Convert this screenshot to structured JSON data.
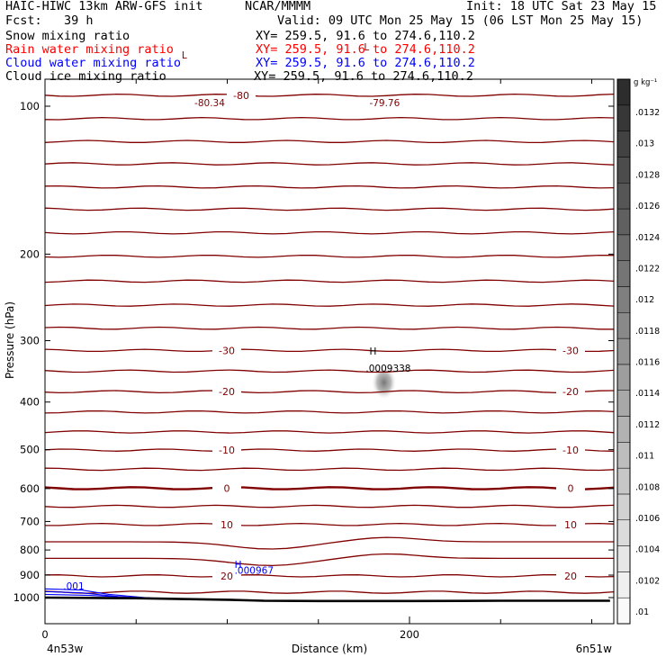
{
  "header": {
    "model": "HAIC-HIWC 13km ARW-GFS init",
    "org": "NCAR/MMMM",
    "init": "Init: 18 UTC Sat 23 May 15",
    "fcst": "Fcst:   39 h",
    "valid": "Valid: 09 UTC Mon 25 May 15 (06 LST Mon 25 May 15)"
  },
  "fields": [
    {
      "name": "Snow mixing ratio",
      "xy": "XY= 259.5, 91.6 to 274.6,110.2",
      "color": "#000000"
    },
    {
      "name": "Rain water mixing ratio",
      "xy": "XY= 259.5, 91.6 to 274.6,110.2",
      "color": "#ff0000"
    },
    {
      "name": "Cloud water mixing ratio",
      "xy": "XY= 259.5, 91.6 to 274.6,110.2",
      "color": "#0000ff"
    },
    {
      "name": "Cloud ice mixing ratio",
      "xy": "XY= 259.5, 91.6 to 274.6,110.2",
      "color": "#000000"
    }
  ],
  "chart_data": {
    "type": "contour",
    "xlabel": "Distance (km)",
    "ylabel": "Pressure (hPa)",
    "xlim": [
      0,
      310
    ],
    "ylim": [
      1050,
      60
    ],
    "x_ticks": [
      {
        "value": 0,
        "label": "0"
      },
      {
        "value": 200,
        "label": "200"
      }
    ],
    "x_minor_ticks": [
      50,
      100,
      150,
      250,
      300
    ],
    "x_end_labels": {
      "left": "4n53w",
      "right": "6n51w"
    },
    "y_ticks": [
      {
        "value": 100,
        "label": "100"
      },
      {
        "value": 200,
        "label": "200"
      },
      {
        "value": 300,
        "label": "300"
      },
      {
        "value": 400,
        "label": "400"
      },
      {
        "value": 500,
        "label": "500"
      },
      {
        "value": 600,
        "label": "600"
      },
      {
        "value": 700,
        "label": "700"
      },
      {
        "value": 800,
        "label": "800"
      },
      {
        "value": 900,
        "label": "900"
      },
      {
        "value": 1000,
        "label": "1000"
      }
    ],
    "colorbar": {
      "unit": "g kg⁻¹",
      "range": [
        0.0098,
        0.014
      ],
      "labels": [
        ".01",
        ".0102",
        ".0104",
        ".0106",
        ".0108",
        ".011",
        ".0112",
        ".0114",
        ".0116",
        ".0118",
        ".012",
        ".0122",
        ".0124",
        ".0126",
        ".0128",
        ".013",
        ".0132"
      ]
    },
    "isotherm_color": "#800000",
    "temperature_contours": [
      {
        "pressure": 95,
        "label": "-80"
      },
      {
        "pressure": 106,
        "label": ""
      },
      {
        "pressure": 118,
        "label": ""
      },
      {
        "pressure": 131,
        "label": ""
      },
      {
        "pressure": 146,
        "label": ""
      },
      {
        "pressure": 162,
        "label": ""
      },
      {
        "pressure": 181,
        "label": ""
      },
      {
        "pressure": 202,
        "label": ""
      },
      {
        "pressure": 227,
        "label": ""
      },
      {
        "pressure": 254,
        "label": ""
      },
      {
        "pressure": 283,
        "label": ""
      },
      {
        "pressure": 314,
        "label": "-30"
      },
      {
        "pressure": 346,
        "label": ""
      },
      {
        "pressure": 381,
        "label": "-20"
      },
      {
        "pressure": 419,
        "label": ""
      },
      {
        "pressure": 460,
        "label": ""
      },
      {
        "pressure": 501,
        "label": "-10"
      },
      {
        "pressure": 548,
        "label": ""
      },
      {
        "pressure": 599,
        "label": "0"
      },
      {
        "pressure": 652,
        "label": ""
      },
      {
        "pressure": 710,
        "label": "10"
      },
      {
        "pressure": 770,
        "label": ""
      },
      {
        "pressure": 832,
        "label": ""
      },
      {
        "pressure": 903,
        "label": "20"
      },
      {
        "pressure": 975,
        "label": ""
      }
    ],
    "annotations": [
      {
        "text": "L",
        "x": 75,
        "p": 80,
        "color": "#800000"
      },
      {
        "text": "-80.34",
        "x": 82,
        "p": 100,
        "color": "#800000"
      },
      {
        "text": "L",
        "x": 175,
        "p": 77,
        "color": "#800000"
      },
      {
        "text": "-79.76",
        "x": 178,
        "p": 100,
        "color": "#800000"
      },
      {
        "text": "H",
        "x": 178,
        "p": 320,
        "color": "#000000"
      },
      {
        "text": ".0009338",
        "x": 176,
        "p": 347,
        "color": "#000000"
      },
      {
        "text": "H",
        "x": 104,
        "p": 870,
        "color": "#0000ff"
      },
      {
        "text": ".000967",
        "x": 104,
        "p": 895,
        "color": "#0000ff"
      },
      {
        "text": ".001",
        "x": 10,
        "p": 963,
        "color": "#0000ff"
      }
    ],
    "snow_max": {
      "x": 186,
      "p": 365,
      "value": ".0009338"
    },
    "terrain_pressure_line": [
      [
        0,
        1000
      ],
      [
        50,
        1003
      ],
      [
        100,
        1010
      ],
      [
        120,
        1015
      ],
      [
        150,
        1016
      ],
      [
        200,
        1016
      ],
      [
        250,
        1015
      ],
      [
        310,
        1015
      ]
    ],
    "cloud_water_contours": [
      [
        [
          0,
          960
        ],
        [
          20,
          965
        ],
        [
          35,
          985
        ],
        [
          55,
          1000
        ],
        [
          70,
          1008
        ]
      ],
      [
        [
          0,
          972
        ],
        [
          20,
          978
        ],
        [
          40,
          995
        ],
        [
          60,
          1005
        ]
      ],
      [
        [
          0,
          985
        ],
        [
          25,
          990
        ],
        [
          50,
          1000
        ],
        [
          80,
          1008
        ]
      ]
    ]
  }
}
